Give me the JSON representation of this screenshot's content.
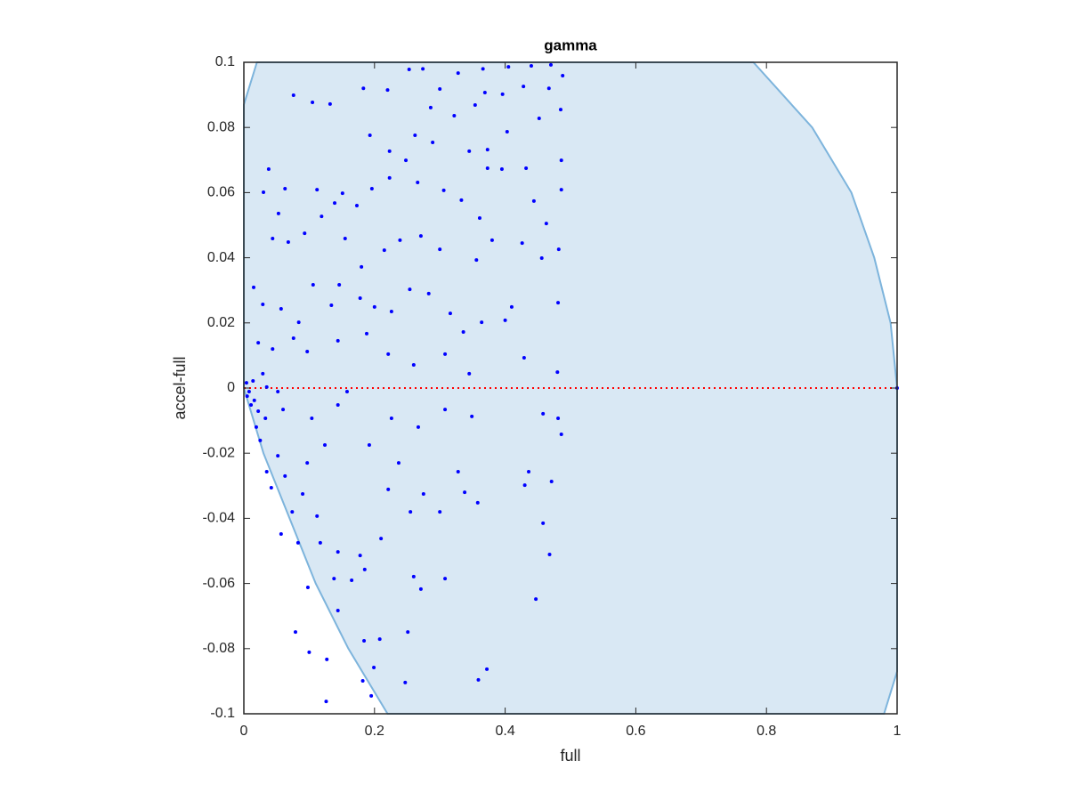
{
  "chart_data": {
    "type": "scatter",
    "title": "gamma",
    "x_label": "full",
    "y_label": "accel-full",
    "xlim": [
      0,
      1
    ],
    "ylim": [
      -0.1,
      0.1
    ],
    "xticks": [
      0,
      0.2,
      0.4,
      0.6,
      0.8,
      1
    ],
    "yticks": [
      -0.1,
      -0.08,
      -0.06,
      -0.04,
      -0.02,
      0,
      0.02,
      0.04,
      0.06,
      0.08,
      0.1
    ],
    "color": "#0000ff",
    "region": {
      "color": "#d9e8f4",
      "edge_color": "#7db4dc",
      "x": [
        0,
        0.02,
        0.78,
        0.87,
        0.93,
        0.965,
        0.99,
        1,
        1,
        0.98,
        0.22,
        0.16,
        0.11,
        0.07,
        0.03,
        0
      ],
      "y": [
        0.087,
        0.1,
        0.1,
        0.08,
        0.06,
        0.04,
        0.02,
        0,
        -0.087,
        -0.1,
        -0.1,
        -0.08,
        -0.06,
        -0.04,
        -0.02,
        0
      ]
    },
    "reference_line": {
      "y": 0,
      "color": "#ff0000"
    },
    "x": [
      0.076,
      0.105,
      0.132,
      0.183,
      0.22,
      0.253,
      0.274,
      0.3,
      0.328,
      0.366,
      0.405,
      0.44,
      0.47,
      0.488,
      0.467,
      0.428,
      0.396,
      0.369,
      0.354,
      0.322,
      0.286,
      0.262,
      0.289,
      0.248,
      0.223,
      0.193,
      0.196,
      0.223,
      0.266,
      0.306,
      0.333,
      0.361,
      0.373,
      0.395,
      0.432,
      0.444,
      0.463,
      0.486,
      0.486,
      0.485,
      0.452,
      0.403,
      0.373,
      0.345,
      0.038,
      0.03,
      0.063,
      0.053,
      0.044,
      0.068,
      0.093,
      0.112,
      0.139,
      0.119,
      0.151,
      0.173,
      0.155,
      0.18,
      0.215,
      0.239,
      0.271,
      0.3,
      0.356,
      0.38,
      0.426,
      0.456,
      0.482,
      0.015,
      0.029,
      0.057,
      0.084,
      0.106,
      0.134,
      0.146,
      0.178,
      0.2,
      0.226,
      0.254,
      0.283,
      0.316,
      0.336,
      0.364,
      0.4,
      0.41,
      0.481,
      0.022,
      0.044,
      0.076,
      0.097,
      0.144,
      0.188,
      0.221,
      0.26,
      0.308,
      0.345,
      0.429,
      0.48,
      0.004,
      0.008,
      0.014,
      0.016,
      0.022,
      0.011,
      0.005,
      0.029,
      0.033,
      0.019,
      0.025,
      0.035,
      0.052,
      0.06,
      0.035,
      0.042,
      0.052,
      0.063,
      0.057,
      0.074,
      0.09,
      0.097,
      0.112,
      0.083,
      0.117,
      0.144,
      0.138,
      0.165,
      0.185,
      0.178,
      0.21,
      0.221,
      0.237,
      0.255,
      0.275,
      0.3,
      0.328,
      0.338,
      0.358,
      0.26,
      0.271,
      0.308,
      0.144,
      0.098,
      0.079,
      0.1,
      0.127,
      0.184,
      0.208,
      0.199,
      0.251,
      0.182,
      0.247,
      0.359,
      0.372,
      0.126,
      0.195,
      0.43,
      0.436,
      0.447,
      0.458,
      0.468,
      0.471,
      0.458,
      0.486,
      0.481,
      0.226,
      0.267,
      0.308,
      0.349,
      0.192,
      0.144,
      0.104,
      0.124,
      0.158,
      1
    ],
    "values": [
      0.0899,
      0.0877,
      0.0872,
      0.092,
      0.0915,
      0.0978,
      0.098,
      0.0918,
      0.0967,
      0.098,
      0.0986,
      0.0989,
      0.0992,
      0.0959,
      0.092,
      0.0926,
      0.0902,
      0.0907,
      0.0869,
      0.0836,
      0.0861,
      0.0776,
      0.0754,
      0.0699,
      0.0727,
      0.0776,
      0.0612,
      0.0645,
      0.0631,
      0.0607,
      0.0577,
      0.0522,
      0.0675,
      0.0672,
      0.0675,
      0.0574,
      0.0505,
      0.0609,
      0.0699,
      0.0855,
      0.0828,
      0.0787,
      0.0732,
      0.0727,
      0.0672,
      0.0601,
      0.0612,
      0.0536,
      0.0459,
      0.0448,
      0.0475,
      0.0609,
      0.0568,
      0.0527,
      0.0598,
      0.056,
      0.0459,
      0.0372,
      0.0423,
      0.0454,
      0.0467,
      0.0426,
      0.0393,
      0.0454,
      0.0445,
      0.0399,
      0.0426,
      0.0309,
      0.0257,
      0.0243,
      0.0202,
      0.0317,
      0.0254,
      0.0317,
      0.0276,
      0.0249,
      0.0235,
      0.0303,
      0.029,
      0.0229,
      0.0172,
      0.0202,
      0.0208,
      0.0249,
      0.0262,
      0.0139,
      0.012,
      0.0153,
      0.0112,
      0.0145,
      0.0167,
      0.0104,
      0.0071,
      0.0104,
      0.0044,
      0.0093,
      0.0049,
      0.0016,
      -0.0011,
      0.0022,
      -0.0038,
      -0.0071,
      -0.0052,
      -0.0025,
      0.0044,
      -0.0093,
      -0.012,
      -0.0161,
      0.0003,
      -0.0011,
      -0.0066,
      -0.0257,
      -0.0306,
      -0.0208,
      -0.027,
      -0.0448,
      -0.038,
      -0.0325,
      -0.023,
      -0.0393,
      -0.0475,
      -0.0475,
      -0.0503,
      -0.0585,
      -0.059,
      -0.0557,
      -0.0514,
      -0.0462,
      -0.0311,
      -0.023,
      -0.038,
      -0.0325,
      -0.038,
      -0.0257,
      -0.032,
      -0.0352,
      -0.0579,
      -0.0617,
      -0.0585,
      -0.0683,
      -0.0612,
      -0.0749,
      -0.0811,
      -0.0833,
      -0.0776,
      -0.0771,
      -0.0858,
      -0.0749,
      -0.0899,
      -0.0904,
      -0.0896,
      -0.0863,
      -0.0962,
      -0.0945,
      -0.0298,
      -0.0257,
      -0.0648,
      -0.0415,
      -0.0511,
      -0.0287,
      -0.0079,
      -0.0142,
      -0.0093,
      -0.0093,
      -0.012,
      -0.0066,
      -0.0087,
      -0.0175,
      -0.0052,
      -0.0093,
      -0.0175,
      -0.0011,
      0
    ]
  }
}
